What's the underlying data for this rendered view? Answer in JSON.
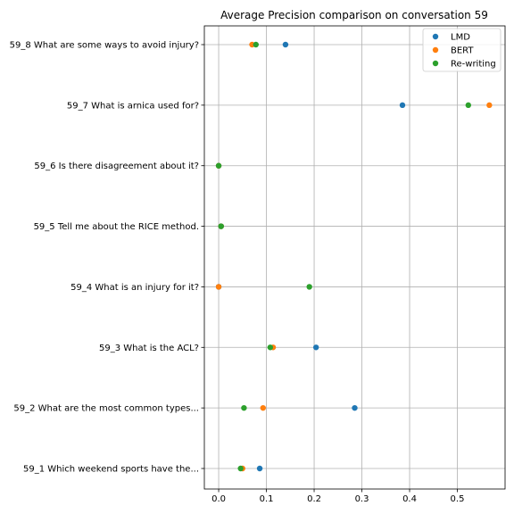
{
  "chart_data": {
    "type": "scatter",
    "title": "Average Precision comparison on conversation 59",
    "xlabel": "",
    "ylabel": "",
    "xlim": [
      -0.03,
      0.6
    ],
    "xticks": [
      0.0,
      0.1,
      0.2,
      0.3,
      0.4,
      0.5
    ],
    "xtick_labels": [
      "0.0",
      "0.1",
      "0.2",
      "0.3",
      "0.4",
      "0.5"
    ],
    "grid": true,
    "legend_position": "top-right",
    "categories": [
      "59_1 Which weekend sports have the...",
      "59_2 What are the most common types...",
      "59_3 What is the ACL?",
      "59_4 What is an injury for it?",
      "59_5 Tell me about the RICE method.",
      "59_6 Is there disagreement about it?",
      "59_7 What is arnica used for?",
      "59_8 What are some ways to avoid injury?"
    ],
    "series": [
      {
        "name": "LMD",
        "color": "#1f77b4",
        "values": [
          0.086,
          0.285,
          0.204,
          0.0,
          0.005,
          0.0,
          0.385,
          0.14
        ]
      },
      {
        "name": "BERT",
        "color": "#ff7f0e",
        "values": [
          0.05,
          0.093,
          0.114,
          0.0,
          0.005,
          0.0,
          0.567,
          0.07
        ]
      },
      {
        "name": "Re-writing",
        "color": "#2ca02c",
        "values": [
          0.046,
          0.053,
          0.108,
          0.19,
          0.005,
          0.0,
          0.523,
          0.078
        ]
      }
    ]
  }
}
